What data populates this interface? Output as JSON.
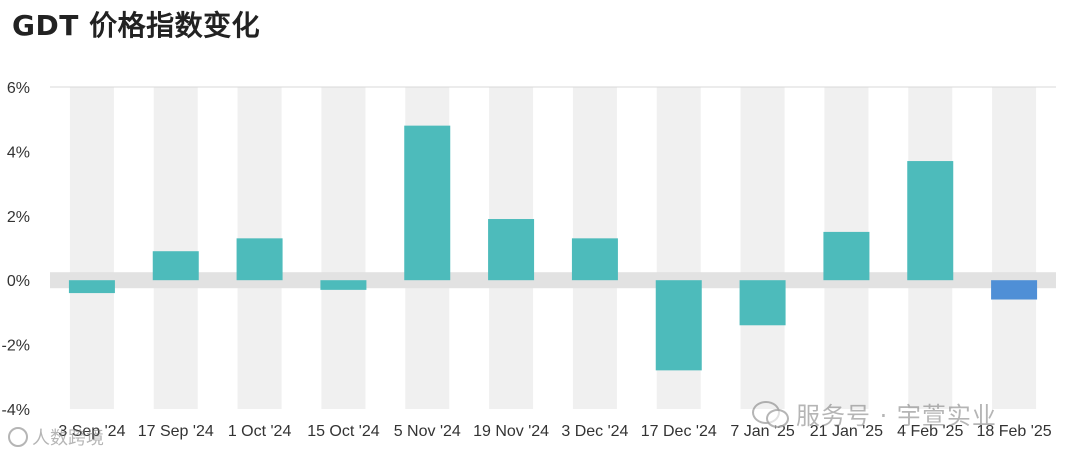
{
  "chart_data": {
    "type": "bar",
    "title": "GDT 价格指数变化",
    "categories": [
      "3 Sep '24",
      "17 Sep '24",
      "1 Oct '24",
      "15 Oct '24",
      "5 Nov '24",
      "19 Nov '24",
      "3 Dec '24",
      "17 Dec '24",
      "7 Jan '25",
      "21 Jan '25",
      "4 Feb '25",
      "18 Feb '25"
    ],
    "values": [
      -0.4,
      0.9,
      1.3,
      -0.3,
      4.8,
      1.9,
      1.3,
      -2.8,
      -1.4,
      1.5,
      3.7,
      -0.6
    ],
    "ylim": [
      -4,
      6
    ],
    "ytick_labels": [
      "6%",
      "4%",
      "2%",
      "0%",
      "-2%",
      "-4%"
    ],
    "ytick_values": [
      6,
      4,
      2,
      0,
      -2,
      -4
    ],
    "xlabel": "",
    "ylabel": "",
    "grid": false,
    "colors": {
      "bar": "#4dbbbb",
      "highlight_bar": "#4f8fd6",
      "band": "#f0f0f0",
      "zero_band": "#e2e2e2",
      "text": "#333333"
    },
    "highlight_index": 11
  },
  "watermark": {
    "text": "服务号 · 宇萱实业",
    "icon": "wechat-icon",
    "signature": "人数跨境",
    "signature_icon": "circle-logo-icon"
  }
}
